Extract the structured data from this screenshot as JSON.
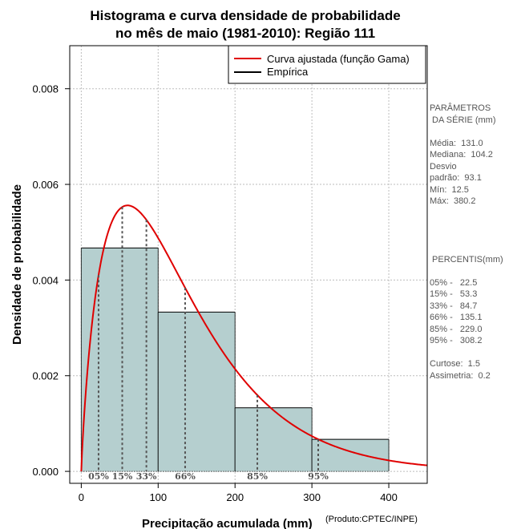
{
  "chart_data": {
    "type": "histogram",
    "title_lines": [
      "Histograma e curva densidade de probabilidade",
      "no mês de maio (1981-2010): Região 111"
    ],
    "xlabel": "Precipitação acumulada (mm)",
    "ylabel": "Densidade de probabilidade",
    "credit": "(Produto:CPTEC/INPE)",
    "xlim": [
      -15,
      450
    ],
    "ylim": [
      -0.00025,
      0.0089
    ],
    "x_ticks": [
      0,
      100,
      200,
      300,
      400
    ],
    "y_ticks": [
      0.0,
      0.002,
      0.004,
      0.006,
      0.008
    ],
    "y_tick_labels": [
      "0.000",
      "0.002",
      "0.004",
      "0.006",
      "0.008"
    ],
    "grid": true,
    "bins": [
      {
        "x0": 0,
        "x1": 100,
        "density": 0.00467
      },
      {
        "x0": 100,
        "x1": 200,
        "density": 0.00333
      },
      {
        "x0": 200,
        "x1": 300,
        "density": 0.00133
      },
      {
        "x0": 300,
        "x1": 400,
        "density": 0.00067
      }
    ],
    "bar_color": "#b5cfcf",
    "curve_color": "#e00000",
    "curve": {
      "name": "Curva ajustada (função Gama)",
      "shape": 1.85,
      "scale": 70.8
    },
    "empirical": {
      "name": "Empírica",
      "color": "#000000"
    },
    "legend_position": "top-right",
    "percentile_markers": [
      {
        "label": "05%",
        "value": 22.5
      },
      {
        "label": "15%",
        "value": 53.3
      },
      {
        "label": "33%",
        "value": 84.7
      },
      {
        "label": "66%",
        "value": 135.1
      },
      {
        "label": "85%",
        "value": 229.0
      },
      {
        "label": "95%",
        "value": 308.2
      }
    ]
  },
  "side_panel": {
    "lines": [
      "PARÂMETROS",
      " DA SÉRIE (mm)",
      "",
      "Média:  131.0",
      "Mediana:  104.2",
      "Desvio",
      "padrão:  93.1",
      "Mín:  12.5",
      "Máx:  380.2",
      "",
      "",
      "",
      "",
      " PERCENTIS(mm)",
      "",
      "05% -   22.5",
      "15% -   53.3",
      "33% -   84.7",
      "66% -   135.1",
      "85% -   229.0",
      "95% -   308.2",
      "",
      "Curtose:  1.5",
      "Assimetria:  0.2"
    ]
  }
}
